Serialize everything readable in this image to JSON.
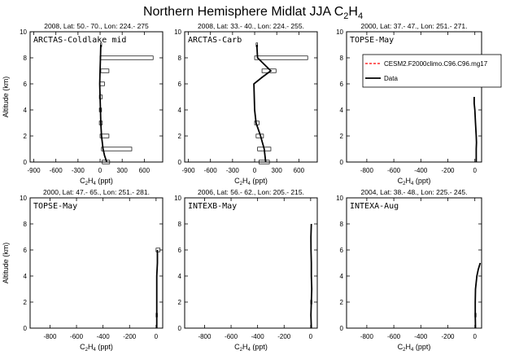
{
  "figure": {
    "title_main": "Northern Hemisphere Midlat JJA C",
    "title_sub": "2",
    "title_main2": "H",
    "title_sub2": "4"
  },
  "legend": {
    "model_label": "CESM2.F2000climo.C96.C96.mg17",
    "data_label": "Data",
    "model_color": "#ff0000",
    "data_color": "#000000"
  },
  "chart_data": [
    {
      "type": "line",
      "header": "2008, Lat:  50.- 70., Lon: 224.- 275",
      "campaign": "ARCTAS-Coldlake mid",
      "xlabel": "C2H4 (ppt)",
      "ylabel": "Altitude (km)",
      "xlim": [
        -950,
        850
      ],
      "ylim": [
        0,
        10
      ],
      "xticks": [
        -900,
        -600,
        -300,
        0,
        300,
        600
      ],
      "yticks": [
        0,
        2,
        4,
        6,
        8,
        10
      ],
      "data_line": {
        "x": [
          90,
          60,
          40,
          20,
          10,
          5,
          0,
          -5,
          0,
          5,
          10
        ],
        "y": [
          0,
          0.5,
          1,
          2,
          3,
          4,
          5,
          6,
          7,
          8,
          9
        ]
      },
      "bars": [
        {
          "y": 0,
          "x0": 30,
          "x1": 130
        },
        {
          "y": 1,
          "x0": 20,
          "x1": 430
        },
        {
          "y": 2,
          "x0": 0,
          "x1": 120
        },
        {
          "y": 3,
          "x0": -10,
          "x1": 30
        },
        {
          "y": 4,
          "x0": -10,
          "x1": 20
        },
        {
          "y": 5,
          "x0": -10,
          "x1": 30
        },
        {
          "y": 6,
          "x0": 0,
          "x1": 60
        },
        {
          "y": 7,
          "x0": 10,
          "x1": 120
        },
        {
          "y": 8,
          "x0": 0,
          "x1": 720
        },
        {
          "y": 9,
          "x0": 5,
          "x1": 15
        }
      ]
    },
    {
      "type": "line",
      "header": "2008, Lat:  33.- 40., Lon: 224.- 255.",
      "campaign": "ARCTAS-Carb",
      "xlabel": "C2H4 (ppt)",
      "ylabel": "",
      "xlim": [
        -950,
        850
      ],
      "ylim": [
        0,
        10
      ],
      "xticks": [
        -900,
        -600,
        -300,
        0,
        300,
        600
      ],
      "yticks": [
        0,
        2,
        4,
        6,
        8,
        10
      ],
      "data_line": {
        "x": [
          150,
          130,
          80,
          20,
          0,
          -10,
          100,
          220,
          40,
          30
        ],
        "y": [
          0,
          1,
          2,
          3,
          4,
          6,
          6.5,
          7,
          8,
          9
        ]
      },
      "bars": [
        {
          "y": 0,
          "x0": 60,
          "x1": 200
        },
        {
          "y": 1,
          "x0": 40,
          "x1": 220
        },
        {
          "y": 2,
          "x0": 20,
          "x1": 120
        },
        {
          "y": 3,
          "x0": 0,
          "x1": 60
        },
        {
          "y": 7,
          "x0": 100,
          "x1": 290
        },
        {
          "y": 8,
          "x0": 0,
          "x1": 720
        },
        {
          "y": 9,
          "x0": 20,
          "x1": 40
        }
      ]
    },
    {
      "type": "line",
      "header": "2000, Lat: 37.- 47., Lon: 251.- 271.",
      "campaign": "TOPSE-May",
      "xlabel": "C2H4 (ppt)",
      "ylabel": "",
      "xlim": [
        -950,
        50
      ],
      "ylim": [
        0,
        10
      ],
      "xticks": [
        -800,
        -600,
        -400,
        -200,
        0
      ],
      "yticks": [
        0,
        2,
        4,
        6,
        8,
        10
      ],
      "data_line": {
        "x": [
          10,
          10,
          12,
          10,
          5,
          0,
          -5,
          -5
        ],
        "y": [
          0,
          1,
          1.5,
          2,
          3,
          4,
          4.5,
          5
        ]
      },
      "bars": []
    },
    {
      "type": "line",
      "header": "2000, Lat: 47.- 65., Lon: 251.- 281.",
      "campaign": "TOPSE-May",
      "xlabel": "C2H4 (ppt)",
      "ylabel": "Altitude (km)",
      "xlim": [
        -950,
        50
      ],
      "ylim": [
        0,
        10
      ],
      "xticks": [
        -800,
        -600,
        -400,
        -200,
        0
      ],
      "yticks": [
        0,
        2,
        4,
        6,
        8,
        10
      ],
      "data_line": {
        "x": [
          5,
          5,
          5,
          5,
          5,
          10,
          10
        ],
        "y": [
          0,
          1,
          2,
          3,
          4,
          5,
          6
        ]
      },
      "bars": [
        {
          "y": 6,
          "x0": 0,
          "x1": 30
        },
        {
          "y": 1,
          "x0": 0,
          "x1": 10
        }
      ]
    },
    {
      "type": "line",
      "header": "2006, Lat: 56.- 62., Lon: 205.- 215.",
      "campaign": "INTEXB-May",
      "xlabel": "C2H4 (ppt)",
      "ylabel": "",
      "xlim": [
        -950,
        50
      ],
      "ylim": [
        0,
        10
      ],
      "xticks": [
        -800,
        -600,
        -400,
        -200,
        0
      ],
      "yticks": [
        0,
        2,
        4,
        6,
        8,
        10
      ],
      "data_line": {
        "x": [
          5,
          2,
          5,
          8,
          5,
          5,
          3,
          2,
          5
        ],
        "y": [
          0,
          1,
          2,
          3,
          4,
          5,
          6,
          7,
          8
        ]
      },
      "bars": [
        {
          "y": 2,
          "x0": 0,
          "x1": 10
        }
      ]
    },
    {
      "type": "line",
      "header": "2004, Lat: 38.- 48., Lon: 225.- 245.",
      "campaign": "INTEXA-Aug",
      "xlabel": "C2H4 (ppt)",
      "ylabel": "",
      "xlim": [
        -950,
        50
      ],
      "ylim": [
        0,
        10
      ],
      "xticks": [
        -800,
        -600,
        -400,
        -200,
        0
      ],
      "yticks": [
        0,
        2,
        4,
        6,
        8,
        10
      ],
      "data_line": {
        "x": [
          5,
          3,
          3,
          5,
          15,
          25,
          40
        ],
        "y": [
          0,
          1,
          2,
          3,
          4,
          4.5,
          5
        ]
      },
      "bars": [
        {
          "y": 1,
          "x0": 0,
          "x1": 8
        }
      ]
    }
  ]
}
